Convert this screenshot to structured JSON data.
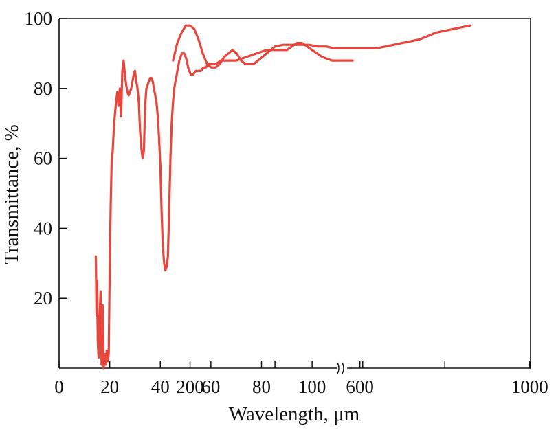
{
  "chart_data": {
    "type": "line",
    "title": "",
    "xlabel": "Wavelength, μm",
    "ylabel": "Transmittance, %",
    "ylim": [
      0,
      100
    ],
    "grid": false,
    "axis_break_x": true,
    "line_color": "#e8453c",
    "x_segments": [
      {
        "xlim": [
          0,
          130
        ],
        "ticks": [
          0,
          20,
          40,
          60,
          80,
          100,
          120
        ],
        "tick_labels": [
          "0",
          "20",
          "40",
          "60",
          "80",
          "100",
          ""
        ]
      },
      {
        "xlim": [
          140,
          1000
        ],
        "ticks": [
          200,
          400,
          600,
          800,
          1000
        ],
        "tick_labels": [
          "200",
          "",
          "600",
          "",
          "1000"
        ]
      }
    ],
    "y_ticks": [
      20,
      40,
      60,
      80,
      100
    ],
    "y_tick_labels": [
      "20",
      "40",
      "60",
      "80",
      "100"
    ],
    "series": [
      {
        "segment": 0,
        "x": [
          14.5,
          14.8,
          15,
          15.3,
          15.6,
          16,
          16.4,
          16.8,
          17.2,
          17.6,
          18,
          18.4,
          18.8,
          19.2,
          19.6,
          20,
          20.4,
          20.8,
          21.2,
          21.6,
          22,
          22.5,
          23,
          23.5,
          24,
          24.5,
          25,
          25.5,
          26,
          26.5,
          27,
          27.5,
          28,
          28.5,
          29,
          29.5,
          30,
          30.5,
          31,
          31.5,
          32,
          32.5,
          33,
          33.5,
          34,
          34.5,
          35,
          35.5,
          36,
          36.5,
          37,
          37.5,
          38,
          38.5,
          39,
          39.5,
          40,
          40.5,
          41,
          41.5,
          42,
          42.5,
          43,
          43.5,
          44,
          44.5,
          45,
          45.5,
          46,
          46.5,
          47,
          47.5,
          48,
          48.5,
          49,
          49.5,
          50,
          50.5,
          51,
          51.5,
          52,
          52.5,
          53,
          54,
          55,
          56,
          57,
          58,
          59,
          60,
          62,
          64,
          66,
          70,
          74,
          78,
          82,
          86,
          90,
          94,
          96,
          98,
          100,
          104,
          108,
          112,
          116
        ],
        "y": [
          32,
          15,
          25,
          8,
          3,
          14,
          22,
          1,
          18,
          0,
          4,
          1,
          5,
          2,
          4,
          28,
          47,
          60,
          62,
          68,
          72,
          76,
          79,
          75,
          80,
          72,
          85,
          88,
          84,
          81,
          79,
          78,
          79,
          80,
          82,
          84,
          85,
          82,
          80,
          76,
          68,
          63,
          60,
          62,
          75,
          80,
          81,
          82,
          83,
          83,
          82,
          80,
          78,
          76,
          72,
          66,
          58,
          45,
          35,
          30,
          28,
          29,
          32,
          45,
          60,
          70,
          76,
          80,
          82,
          84,
          86,
          88,
          89,
          90,
          90,
          90,
          89,
          88,
          86,
          85,
          84,
          84,
          84,
          85,
          85,
          85,
          86,
          86,
          87,
          87,
          87,
          88,
          88,
          88,
          89,
          90,
          91,
          91,
          91,
          93,
          93,
          92,
          91,
          89,
          88,
          88,
          88
        ]
      },
      {
        "segment": 1,
        "x": [
          160,
          170,
          180,
          190,
          200,
          210,
          220,
          230,
          240,
          250,
          260,
          270,
          280,
          290,
          300,
          310,
          320,
          330,
          340,
          350,
          360,
          380,
          400,
          420,
          440,
          460,
          480,
          500,
          520,
          540,
          560,
          580,
          600,
          620,
          640,
          660,
          680,
          700,
          720,
          740,
          760,
          780,
          800,
          820,
          840,
          860
        ],
        "y": [
          88,
          93,
          96,
          98,
          98,
          97,
          94,
          90,
          87,
          86,
          86,
          87,
          89,
          90,
          91,
          90,
          88,
          87,
          87,
          87,
          88,
          90,
          92,
          92.5,
          92.5,
          92.5,
          92.5,
          92,
          92,
          91.5,
          91.5,
          91.5,
          91.5,
          91.5,
          91.5,
          92,
          92.5,
          93,
          93.5,
          94,
          95,
          96,
          96.5,
          97,
          97.5,
          98
        ]
      }
    ]
  }
}
